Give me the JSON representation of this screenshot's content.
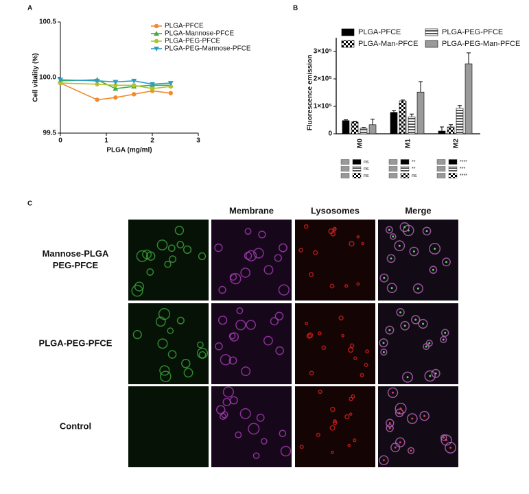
{
  "panel_labels": [
    "A",
    "B",
    "C"
  ],
  "chart_data": [
    {
      "type": "line",
      "xlabel": "PLGA (mg/ml)",
      "ylabel": "Cell vitality (%)",
      "x": [
        0,
        0.8,
        1.2,
        1.6,
        2.0,
        2.4
      ],
      "xlim": [
        0,
        3
      ],
      "xticks": [
        0,
        1,
        2,
        3
      ],
      "ylim": [
        99.5,
        100.5
      ],
      "yticks": [
        99.5,
        {
          "value": 100,
          "label": "100.0"
        },
        100.5
      ],
      "legend": "top-right",
      "series": [
        {
          "name": "PLGA-PFCE",
          "color": "#f28a30",
          "marker": "circle",
          "values": [
            99.95,
            99.8,
            99.82,
            99.85,
            99.88,
            99.86
          ]
        },
        {
          "name": "PLGA-Mannose-PFCE",
          "color": "#3cb043",
          "marker": "triangle-up",
          "values": [
            99.97,
            99.98,
            99.9,
            99.92,
            99.93,
            99.93
          ]
        },
        {
          "name": "PLGA-PEG-PFCE",
          "color": "#b5c22a",
          "marker": "circle",
          "values": [
            99.95,
            99.94,
            99.93,
            99.93,
            99.9,
            99.92
          ]
        },
        {
          "name": "PLGA-PEG-Mannose-PFCE",
          "color": "#2a9cc8",
          "marker": "triangle-down",
          "values": [
            99.98,
            99.97,
            99.96,
            99.97,
            99.94,
            99.95
          ]
        }
      ]
    },
    {
      "type": "bar",
      "ylabel": "Fluorescence emission",
      "categories": [
        "M0",
        "M1",
        "M2"
      ],
      "ylim": [
        0,
        350000
      ],
      "yticks": [
        0,
        {
          "value": 100000,
          "label": "1×10⁵"
        },
        {
          "value": 200000,
          "label": "2×10⁵"
        },
        {
          "value": 300000,
          "label": "3×10⁵"
        }
      ],
      "legend": "top",
      "series": [
        {
          "name": "PLGA-PFCE",
          "color": "#000000",
          "pattern": "solid",
          "values": [
            48000,
            78000,
            10000
          ],
          "errors": [
            3000,
            6000,
            15000
          ]
        },
        {
          "name": "PLGA-Man-PFCE",
          "color": "#000000",
          "pattern": "checker",
          "values": [
            43000,
            120000,
            25000
          ],
          "errors": [
            2000,
            3000,
            8000
          ]
        },
        {
          "name": "PLGA-PEG-PFCE",
          "color": "#555555",
          "pattern": "stripes",
          "values": [
            20000,
            62000,
            93000
          ],
          "errors": [
            3000,
            10000,
            10000
          ]
        },
        {
          "name": "PLGA-PEG-Man-PFCE",
          "color": "#9a9a9a",
          "pattern": "solid",
          "values": [
            33000,
            152000,
            255000
          ],
          "errors": [
            20000,
            38000,
            40000
          ]
        }
      ],
      "significance": [
        [
          "ns",
          "ns",
          "ns"
        ],
        [
          "**",
          "**",
          "ns"
        ],
        [
          "****",
          "***",
          "****"
        ]
      ]
    }
  ],
  "panel_c": {
    "columns": [
      "Membrane",
      "Lysosomes",
      "Merge"
    ],
    "rows": [
      [
        "Mannose-PLGA",
        "PEG-PFCE"
      ],
      [
        "PLGA-PEG-PFCE"
      ],
      [
        "Control"
      ]
    ]
  }
}
